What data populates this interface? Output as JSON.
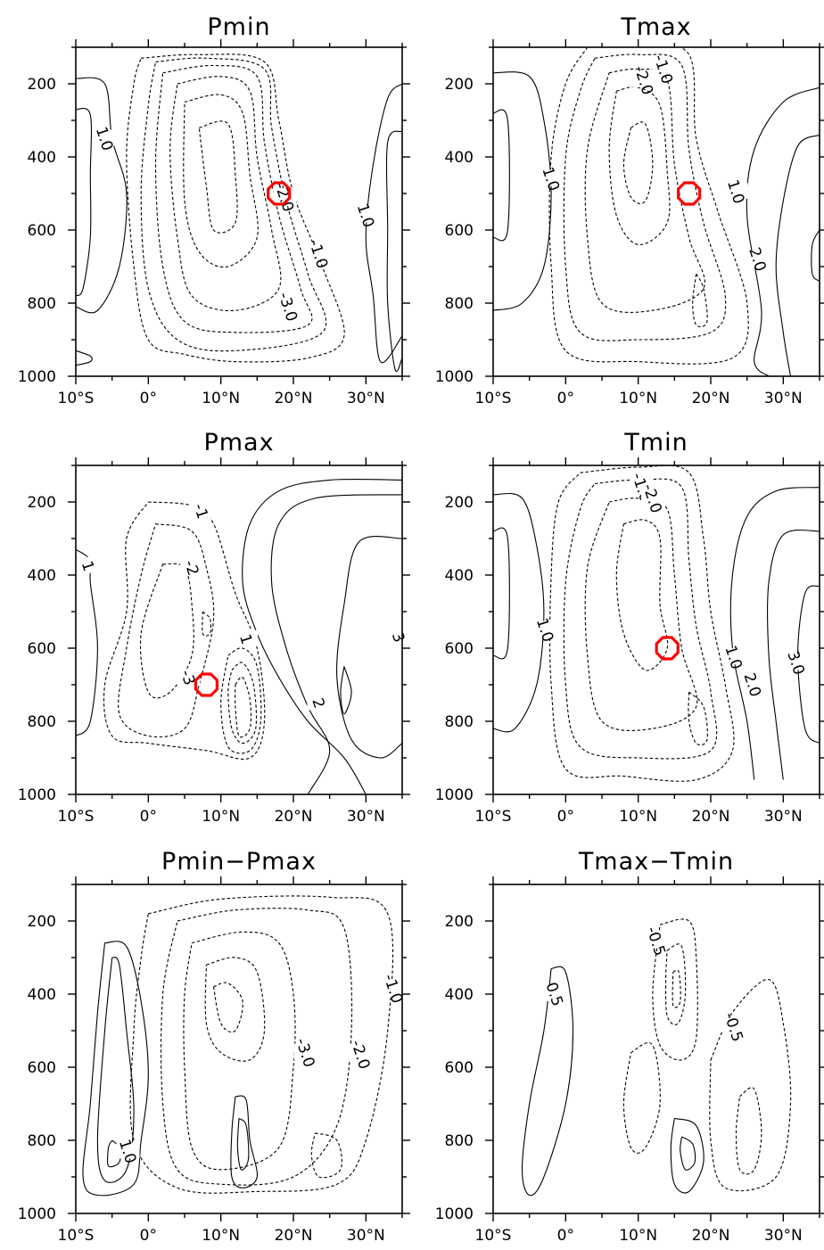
{
  "chart_data": [
    {
      "type": "contour",
      "title": "Pmin",
      "x_ticks": [
        "10°S",
        "0°",
        "10°N",
        "20°N",
        "30°N"
      ],
      "y_ticks": [
        "200",
        "400",
        "600",
        "800",
        "1000"
      ],
      "xlim": [
        -10,
        35
      ],
      "ylim": [
        1000,
        100
      ],
      "contour_labels": [
        {
          "text": "1.0",
          "x": -6,
          "y": 350
        },
        {
          "text": "-2.0",
          "x": 18.8,
          "y": 510
        },
        {
          "text": "-1.0",
          "x": 23.5,
          "y": 665
        },
        {
          "text": "-3.0",
          "x": 19.3,
          "y": 810
        },
        {
          "text": "1.0",
          "x": 30,
          "y": 560
        }
      ],
      "marker": {
        "x": 18,
        "y": 500
      }
    },
    {
      "type": "contour",
      "title": "Tmax",
      "x_ticks": [
        "10°S",
        "0°",
        "10°N",
        "20°N",
        "30°N"
      ],
      "y_ticks": [
        "200",
        "400",
        "600",
        "800",
        "1000"
      ],
      "xlim": [
        -10,
        35
      ],
      "ylim": [
        1000,
        100
      ],
      "contour_labels": [
        {
          "text": "-1.0",
          "x": 13.5,
          "y": 160
        },
        {
          "text": "-2.0",
          "x": 10.8,
          "y": 190
        },
        {
          "text": "1.0",
          "x": -2,
          "y": 460
        },
        {
          "text": "1.0",
          "x": 23.5,
          "y": 495
        },
        {
          "text": "2.0",
          "x": 26.5,
          "y": 680
        }
      ],
      "marker": {
        "x": 17,
        "y": 500
      }
    },
    {
      "type": "contour",
      "title": "Pmax",
      "x_ticks": [
        "10°S",
        "0°",
        "10°N",
        "20°N",
        "30°N"
      ],
      "y_ticks": [
        "200",
        "400",
        "600",
        "800",
        "1000"
      ],
      "xlim": [
        -10,
        35
      ],
      "ylim": [
        1000,
        100
      ],
      "contour_labels": [
        {
          "text": "-1",
          "x": 7.3,
          "y": 225
        },
        {
          "text": "1",
          "x": -8.3,
          "y": 375
        },
        {
          "text": "-2",
          "x": 6,
          "y": 380
        },
        {
          "text": "1",
          "x": 13.5,
          "y": 575
        },
        {
          "text": "-3",
          "x": 5.5,
          "y": 680
        },
        {
          "text": "2",
          "x": 23.5,
          "y": 750
        },
        {
          "text": "3",
          "x": 34.5,
          "y": 570
        }
      ],
      "marker": {
        "x": 8,
        "y": 700
      }
    },
    {
      "type": "contour",
      "title": "Tmin",
      "x_ticks": [
        "10°S",
        "0°",
        "10°N",
        "20°N",
        "30°N"
      ],
      "y_ticks": [
        "200",
        "400",
        "600",
        "800",
        "1000"
      ],
      "xlim": [
        -10,
        35
      ],
      "ylim": [
        1000,
        100
      ],
      "contour_labels": [
        {
          "text": "-1.0",
          "x": 10.5,
          "y": 160
        },
        {
          "text": "-2.0",
          "x": 12,
          "y": 190
        },
        {
          "text": "1.0",
          "x": -2.8,
          "y": 550
        },
        {
          "text": "1.0",
          "x": 23.2,
          "y": 625
        },
        {
          "text": "2.0",
          "x": 25.8,
          "y": 700
        },
        {
          "text": "3.0",
          "x": 31.8,
          "y": 640
        }
      ],
      "marker": {
        "x": 14,
        "y": 600
      }
    },
    {
      "type": "contour",
      "title": "Pmin−Pmax",
      "x_ticks": [
        "10°S",
        "0°",
        "10°N",
        "20°N",
        "30°N"
      ],
      "y_ticks": [
        "200",
        "400",
        "600",
        "800",
        "1000"
      ],
      "xlim": [
        -10,
        35
      ],
      "ylim": [
        1000,
        100
      ],
      "contour_labels": [
        {
          "text": "-1.0",
          "x": 33.8,
          "y": 385
        },
        {
          "text": "-3.0",
          "x": 21.7,
          "y": 560
        },
        {
          "text": "-2.0",
          "x": 29.3,
          "y": 565
        },
        {
          "text": "1.0",
          "x": -2.8,
          "y": 830
        }
      ],
      "marker": null
    },
    {
      "type": "contour",
      "title": "Tmax−Tmin",
      "x_ticks": [
        "10°S",
        "0°",
        "10°N",
        "20°N",
        "30°N"
      ],
      "y_ticks": [
        "200",
        "400",
        "600",
        "800",
        "1000"
      ],
      "xlim": [
        -10,
        35
      ],
      "ylim": [
        1000,
        100
      ],
      "contour_labels": [
        {
          "text": "-0.5",
          "x": 12.5,
          "y": 255
        },
        {
          "text": "0.5",
          "x": -1.5,
          "y": 400
        },
        {
          "text": "-0.5",
          "x": 23.2,
          "y": 490
        }
      ],
      "marker": null
    }
  ]
}
